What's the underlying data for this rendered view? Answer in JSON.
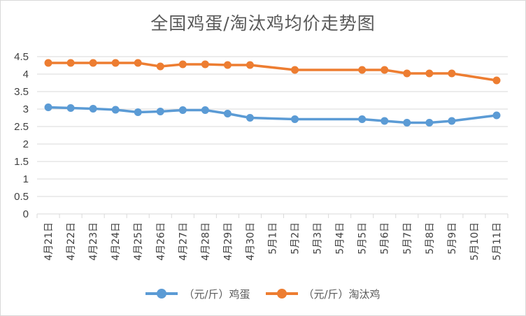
{
  "chart_data": {
    "type": "line",
    "title": "全国鸡蛋/淘汰鸡均价走势图",
    "categories": [
      "4月21日",
      "4月22日",
      "4月23日",
      "4月24日",
      "4月25日",
      "4月26日",
      "4月27日",
      "4月28日",
      "4月29日",
      "4月30日",
      "5月1日",
      "5月2日",
      "5月3日",
      "5月4日",
      "5月5日",
      "5月6日",
      "5月7日",
      "5月8日",
      "5月9日",
      "5月10日",
      "5月11日"
    ],
    "series": [
      {
        "name": "（元/斤）鸡蛋",
        "color": "#5b9bd5",
        "values": [
          3.05,
          3.03,
          3.01,
          2.98,
          2.91,
          2.93,
          2.97,
          2.97,
          2.87,
          2.75,
          null,
          2.71,
          null,
          null,
          2.71,
          2.66,
          2.61,
          2.61,
          2.66,
          null,
          2.82
        ]
      },
      {
        "name": "（元/斤）淘汰鸡",
        "color": "#ed7d31",
        "values": [
          4.32,
          4.32,
          4.32,
          4.32,
          4.32,
          4.22,
          4.28,
          4.28,
          4.26,
          4.26,
          null,
          4.12,
          null,
          null,
          4.12,
          4.12,
          4.02,
          4.02,
          4.02,
          null,
          3.82
        ]
      }
    ],
    "ylim": [
      0,
      4.5
    ],
    "yticks": [
      "0",
      "0.5",
      "1",
      "1.5",
      "2",
      "2.5",
      "3",
      "3.5",
      "4",
      "4.5"
    ],
    "grid": true,
    "legend": "bottom",
    "xlabel": "",
    "ylabel": ""
  }
}
